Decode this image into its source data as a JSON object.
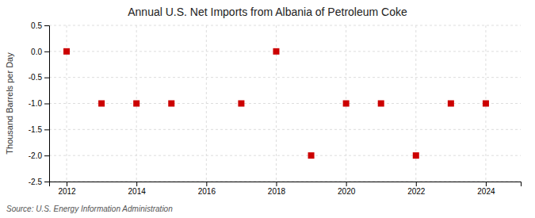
{
  "chart_data": {
    "type": "scatter",
    "title": "Annual U.S. Net Imports from Albania of Petroleum Coke",
    "ylabel": "Thousand Barrels per Day",
    "annotations": [
      "Source: U.S. Energy Information Administration"
    ],
    "x": [
      2012,
      2013,
      2014,
      2015,
      2017,
      2018,
      2019,
      2020,
      2021,
      2022,
      2023,
      2024
    ],
    "values": [
      0,
      -1,
      -1,
      -1,
      -1,
      0,
      -2,
      -1,
      -1,
      -2,
      -1,
      -1
    ],
    "color": "#cc0000",
    "marker": "square",
    "xlim": [
      2011.5,
      2025.0
    ],
    "xticks": [
      2012,
      2014,
      2016,
      2018,
      2020,
      2022,
      2024
    ],
    "ylim": [
      -2.5,
      0.5
    ],
    "yticks": [
      0.5,
      {
        "value": 0.0,
        "label": "0.0"
      },
      -0.5,
      {
        "value": -1.0,
        "label": "-1.0"
      },
      -1.5,
      {
        "value": -2.0,
        "label": "-2.0"
      },
      -2.5
    ],
    "grid": true
  }
}
